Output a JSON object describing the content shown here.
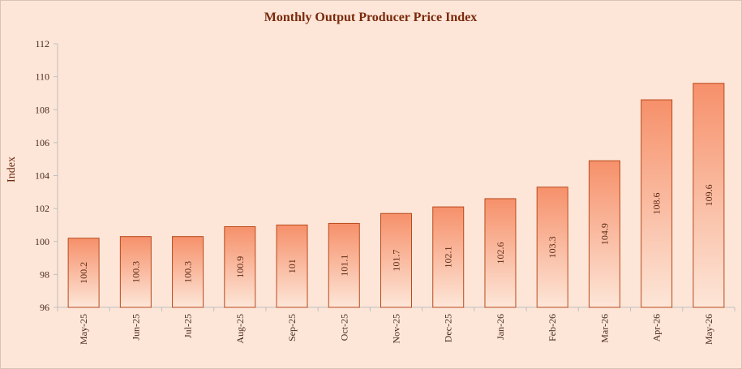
{
  "colors": {
    "background": "#fde6d8",
    "bar_top": "#f6906a",
    "bar_bottom": "#fde6d8",
    "bar_stroke": "#b84a1c",
    "axis": "#bfbfbf",
    "title": "#7a2a0c"
  },
  "chart_data": {
    "type": "bar",
    "title": "Monthly Output Producer Price Index",
    "xlabel": "",
    "ylabel": "Index",
    "ylim": [
      96,
      112
    ],
    "yticks": [
      96,
      98,
      100,
      102,
      104,
      106,
      108,
      110,
      112
    ],
    "grid": false,
    "legend": "none",
    "categories": [
      "May-25",
      "Jun-25",
      "Jul-25",
      "Aug-25",
      "Sep-25",
      "Oct-25",
      "Nov-25",
      "Dec-25",
      "Jan-26",
      "Feb-26",
      "Mar-26",
      "Apr-26",
      "May-26"
    ],
    "values": [
      100.2,
      100.3,
      100.3,
      100.9,
      101,
      101.1,
      101.7,
      102.1,
      102.6,
      103.3,
      104.9,
      108.6,
      109.6
    ],
    "value_labels": [
      "100.2",
      "100.3",
      "100.3",
      "100.9",
      "101",
      "101.1",
      "101.7",
      "102.1",
      "102.6",
      "103.3",
      "104.9",
      "108.6",
      "109.6"
    ]
  }
}
